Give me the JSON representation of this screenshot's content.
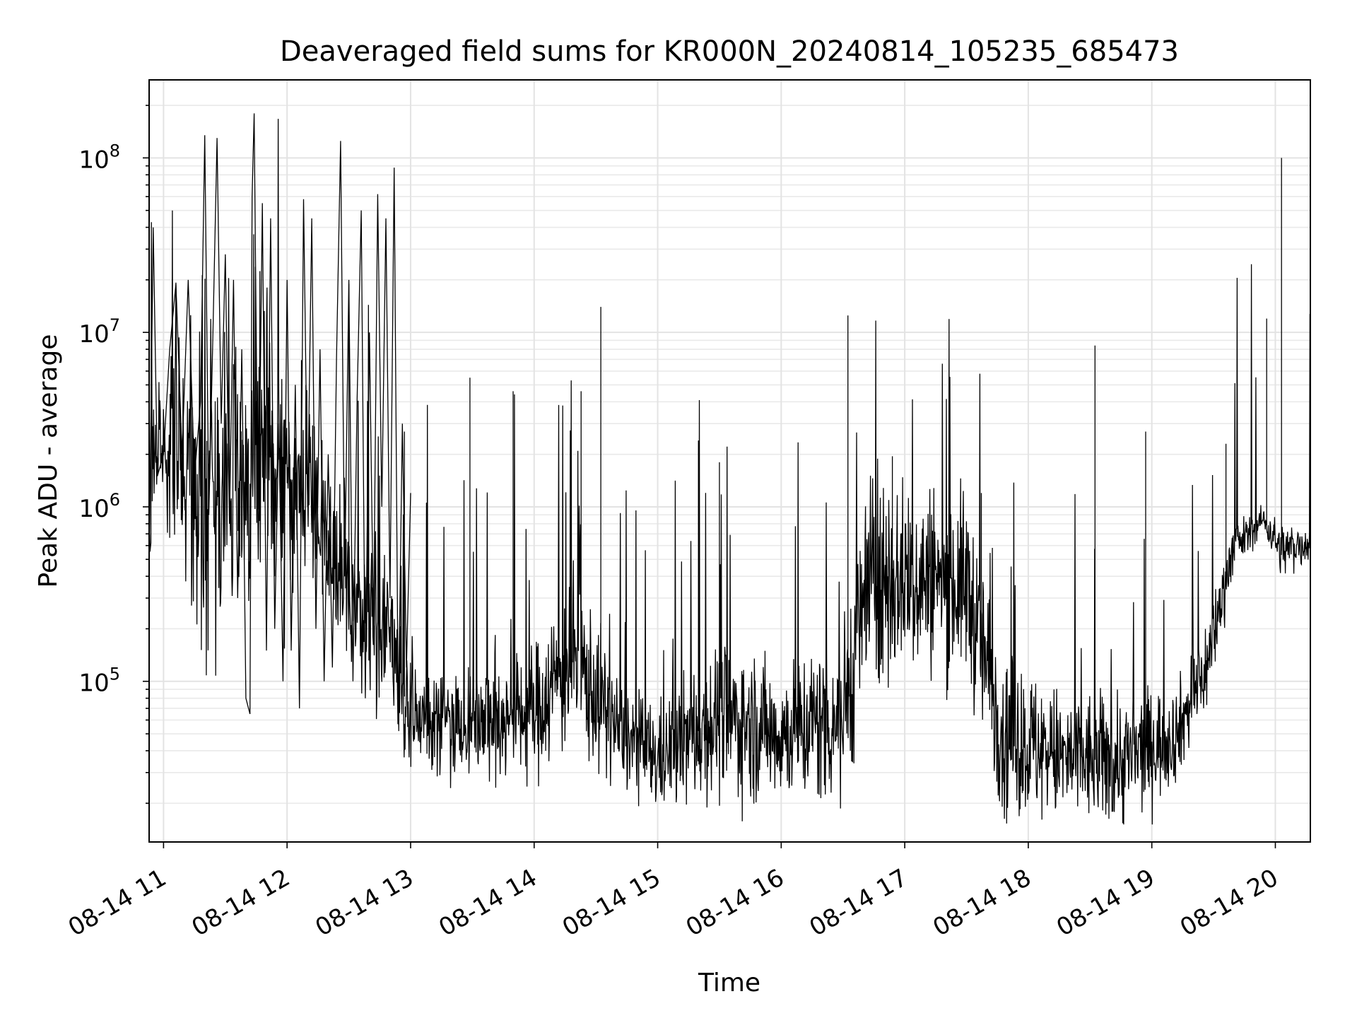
{
  "chart_data": {
    "type": "line",
    "title": "Deaveraged field sums for KR000N_20240814_105235_685473",
    "xlabel": "Time",
    "ylabel": "Peak ADU - average",
    "yscale": "log",
    "xlim": [
      "2024-08-14 10:53",
      "2024-08-14 20:17"
    ],
    "ylim": [
      12000,
      280000000
    ],
    "grid": true,
    "x_tick_labels": [
      "08-14 11",
      "08-14 12",
      "08-14 13",
      "08-14 14",
      "08-14 15",
      "08-14 16",
      "08-14 17",
      "08-14 18",
      "08-14 19",
      "08-14 20"
    ],
    "y_tick_labels": [
      {
        "base": "10",
        "exp": "5",
        "value": 100000
      },
      {
        "base": "10",
        "exp": "6",
        "value": 1000000
      },
      {
        "base": "10",
        "exp": "7",
        "value": 10000000
      },
      {
        "base": "10",
        "exp": "8",
        "value": 100000000
      }
    ],
    "series": [
      {
        "color": "#000000",
        "points": [
          [
            "2024-08-14 10:53",
            450000
          ],
          [
            "2024-08-14 10:55",
            40000000
          ],
          [
            "2024-08-14 10:57",
            1500000
          ],
          [
            "2024-08-14 11:00",
            2000000
          ],
          [
            "2024-08-14 11:03",
            8000000
          ],
          [
            "2024-08-14 11:06",
            19000000
          ],
          [
            "2024-08-14 11:09",
            2000000
          ],
          [
            "2024-08-14 11:12",
            20000000
          ],
          [
            "2024-08-14 11:15",
            1500000
          ],
          [
            "2024-08-14 11:18",
            4000000
          ],
          [
            "2024-08-14 11:20",
            135000000
          ],
          [
            "2024-08-14 11:22",
            900000
          ],
          [
            "2024-08-14 11:24",
            10000000
          ],
          [
            "2024-08-14 11:26",
            130000000
          ],
          [
            "2024-08-14 11:28",
            3000000
          ],
          [
            "2024-08-14 11:30",
            28000000
          ],
          [
            "2024-08-14 11:32",
            800000
          ],
          [
            "2024-08-14 11:34",
            20000000
          ],
          [
            "2024-08-14 11:36",
            300000
          ],
          [
            "2024-08-14 11:38",
            8000000
          ],
          [
            "2024-08-14 11:40",
            80000
          ],
          [
            "2024-08-14 11:42",
            65000
          ],
          [
            "2024-08-14 11:43",
            60000000
          ],
          [
            "2024-08-14 11:44",
            180000000
          ],
          [
            "2024-08-14 11:46",
            500000
          ],
          [
            "2024-08-14 11:48",
            55000000
          ],
          [
            "2024-08-14 11:50",
            150000
          ],
          [
            "2024-08-14 11:52",
            45000000
          ],
          [
            "2024-08-14 11:54",
            200000
          ],
          [
            "2024-08-14 11:56",
            3000000
          ],
          [
            "2024-08-14 11:58",
            100000
          ],
          [
            "2024-08-14 12:00",
            20000000
          ],
          [
            "2024-08-14 12:02",
            150000
          ],
          [
            "2024-08-14 12:04",
            5000000
          ],
          [
            "2024-08-14 12:06",
            70000
          ],
          [
            "2024-08-14 12:08",
            58000000
          ],
          [
            "2024-08-14 12:10",
            1000000
          ],
          [
            "2024-08-14 12:12",
            45000000
          ],
          [
            "2024-08-14 12:14",
            200000
          ],
          [
            "2024-08-14 12:16",
            8000000
          ],
          [
            "2024-08-14 12:18",
            100000
          ],
          [
            "2024-08-14 12:20",
            2000000
          ],
          [
            "2024-08-14 12:22",
            120000
          ],
          [
            "2024-08-14 12:24",
            7000000
          ],
          [
            "2024-08-14 12:26",
            125000000
          ],
          [
            "2024-08-14 12:28",
            400000
          ],
          [
            "2024-08-14 12:30",
            20000000
          ],
          [
            "2024-08-14 12:32",
            100000
          ],
          [
            "2024-08-14 12:34",
            4000000
          ],
          [
            "2024-08-14 12:36",
            50000000
          ],
          [
            "2024-08-14 12:38",
            80000
          ],
          [
            "2024-08-14 12:40",
            10000000
          ],
          [
            "2024-08-14 12:42",
            200000
          ],
          [
            "2024-08-14 12:44",
            62000000
          ],
          [
            "2024-08-14 12:46",
            1000000
          ],
          [
            "2024-08-14 12:48",
            45000000
          ],
          [
            "2024-08-14 12:50",
            300000
          ],
          [
            "2024-08-14 12:52",
            88000000
          ],
          [
            "2024-08-14 12:54",
            60000
          ],
          [
            "2024-08-14 12:56",
            3000000
          ],
          [
            "2024-08-14 12:58",
            120000
          ],
          [
            "2024-08-14 13:00",
            1200000
          ]
        ]
      }
    ]
  }
}
